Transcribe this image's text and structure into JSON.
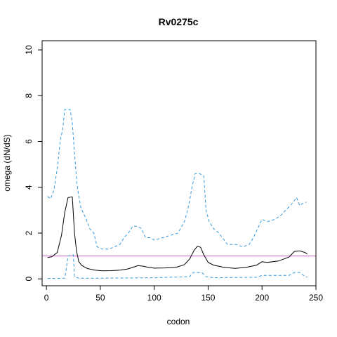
{
  "chart_data": {
    "type": "line",
    "title": "Rv0275c",
    "xlabel": "codon",
    "ylabel": "omega (dN/dS)",
    "xlim": [
      -4,
      250
    ],
    "ylim": [
      -0.3,
      10.4
    ],
    "xticks": [
      0,
      50,
      100,
      150,
      200,
      250
    ],
    "yticks": [
      0,
      2,
      4,
      6,
      8,
      10
    ],
    "grid": false,
    "legend": "none",
    "reference_line": {
      "y": 1,
      "color": "#cc66cc"
    },
    "series": [
      {
        "style": "solid",
        "color": "#000000",
        "x": [
          1,
          5,
          10,
          14,
          17,
          20,
          24,
          26,
          28,
          30,
          33,
          38,
          45,
          52,
          60,
          68,
          75,
          80,
          85,
          90,
          95,
          100,
          110,
          120,
          128,
          133,
          137,
          140,
          143,
          146,
          150,
          155,
          165,
          175,
          185,
          195,
          200,
          205,
          215,
          225,
          230,
          235,
          240,
          242
        ],
        "y": [
          0.93,
          0.97,
          1.15,
          1.9,
          2.9,
          3.55,
          3.58,
          2.0,
          1.2,
          0.75,
          0.58,
          0.45,
          0.38,
          0.35,
          0.36,
          0.38,
          0.43,
          0.5,
          0.58,
          0.55,
          0.5,
          0.47,
          0.48,
          0.5,
          0.62,
          0.88,
          1.25,
          1.42,
          1.38,
          1.05,
          0.72,
          0.6,
          0.5,
          0.46,
          0.5,
          0.6,
          0.75,
          0.72,
          0.78,
          0.95,
          1.2,
          1.22,
          1.15,
          1.08
        ]
      },
      {
        "style": "dashed",
        "color": "#3399dd",
        "x": [
          1,
          4,
          7,
          10,
          13,
          15,
          17,
          19,
          22,
          24,
          26,
          28,
          30,
          32,
          34,
          37,
          40,
          44,
          47,
          52,
          58,
          63,
          68,
          72,
          76,
          80,
          84,
          88,
          92,
          96,
          100,
          108,
          115,
          122,
          128,
          132,
          135,
          138,
          142,
          146,
          148,
          151,
          155,
          160,
          168,
          176,
          182,
          188,
          192,
          197,
          200,
          205,
          212,
          218,
          224,
          228,
          232,
          235,
          238,
          241
        ],
        "y": [
          3.6,
          3.5,
          3.9,
          4.8,
          6.1,
          6.5,
          7.4,
          7.4,
          7.4,
          6.8,
          5.5,
          4.3,
          3.6,
          3.1,
          2.9,
          2.6,
          2.2,
          2.0,
          1.4,
          1.3,
          1.3,
          1.4,
          1.5,
          1.8,
          2.0,
          2.3,
          2.3,
          2.2,
          1.8,
          1.8,
          1.7,
          1.8,
          1.9,
          2.0,
          2.5,
          3.2,
          4.0,
          4.6,
          4.6,
          4.5,
          3.0,
          2.5,
          2.2,
          2.0,
          1.5,
          1.5,
          1.4,
          1.5,
          1.8,
          2.3,
          2.6,
          2.5,
          2.6,
          2.8,
          3.1,
          3.3,
          3.55,
          3.2,
          3.3,
          3.35
        ]
      },
      {
        "style": "dashed",
        "color": "#3399dd",
        "x": [
          1,
          10,
          17,
          18,
          20,
          25,
          26,
          30,
          50,
          100,
          133,
          136,
          140,
          145,
          148,
          155,
          195,
          200,
          225,
          230,
          235,
          240,
          242
        ],
        "y": [
          0.02,
          0.02,
          0.03,
          0.3,
          1.0,
          1.05,
          0.1,
          0.03,
          0.03,
          0.05,
          0.1,
          0.28,
          0.28,
          0.25,
          0.1,
          0.05,
          0.07,
          0.15,
          0.15,
          0.28,
          0.28,
          0.1,
          0.08
        ]
      }
    ]
  }
}
